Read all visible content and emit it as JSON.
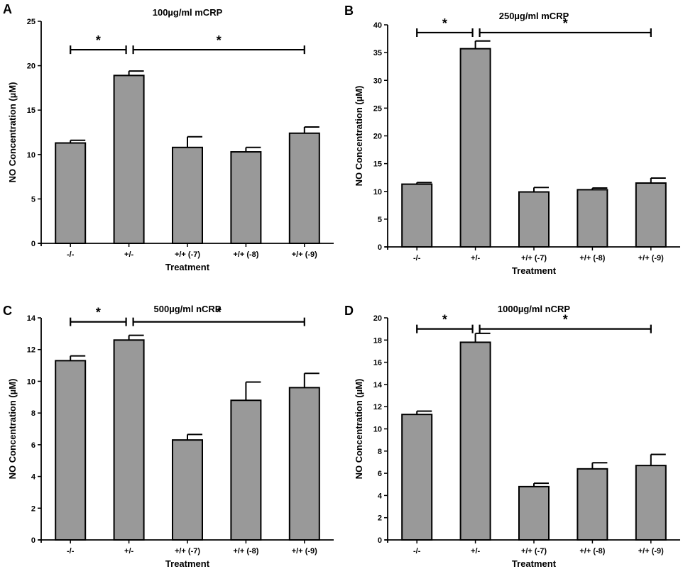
{
  "chart_data": [
    {
      "panel": "A",
      "type": "bar",
      "title": "100µg/ml mCRP",
      "xlabel": "Treatment",
      "ylabel": "NO Concentration (µM)",
      "categories": [
        "-/-",
        "+/-",
        "+/+ (-7)",
        "+/+ (-8)",
        "+/+ (-9)"
      ],
      "values": [
        11.3,
        18.9,
        10.8,
        10.3,
        12.4
      ],
      "errors": [
        0.3,
        0.5,
        1.2,
        0.5,
        0.7
      ],
      "ylim": [
        0,
        25
      ],
      "yticks": [
        "0",
        "5",
        "10",
        "15",
        "20",
        "25"
      ],
      "significance": [
        {
          "from": 0,
          "to": 1,
          "y": 21.8,
          "label": "*"
        },
        {
          "from": 1,
          "to": 4,
          "y": 21.8,
          "label": "*"
        }
      ]
    },
    {
      "panel": "B",
      "type": "bar",
      "title": "250µg/ml mCRP",
      "xlabel": "Treatment",
      "ylabel": "NO Concentration (µM)",
      "categories": [
        "-/-",
        "+/-",
        "+/+ (-7)",
        "+/+ (-8)",
        "+/+ (-9)"
      ],
      "values": [
        11.3,
        35.7,
        9.9,
        10.3,
        11.5
      ],
      "errors": [
        0.3,
        1.4,
        0.8,
        0.3,
        0.9
      ],
      "ylim": [
        0,
        40
      ],
      "yticks": [
        "0",
        "5",
        "10",
        "15",
        "20",
        "25",
        "30",
        "35",
        "40"
      ],
      "significance": [
        {
          "from": 0,
          "to": 1,
          "y": 38.6,
          "label": "*"
        },
        {
          "from": 1,
          "to": 4,
          "y": 38.6,
          "label": "*"
        }
      ]
    },
    {
      "panel": "C",
      "type": "bar",
      "title": "500µg/ml nCRP",
      "xlabel": "Treatment",
      "ylabel": "NO Concentration (µM)",
      "categories": [
        "-/-",
        "+/-",
        "+/+ (-7)",
        "+/+ (-8)",
        "+/+ (-9)"
      ],
      "values": [
        11.3,
        12.6,
        6.3,
        8.8,
        9.6
      ],
      "errors": [
        0.3,
        0.3,
        0.35,
        1.15,
        0.9
      ],
      "ylim": [
        0,
        14
      ],
      "yticks": [
        "0",
        "2",
        "4",
        "6",
        "8",
        "10",
        "12",
        "14"
      ],
      "significance": [
        {
          "from": 0,
          "to": 1,
          "y": 13.75,
          "label": "*"
        },
        {
          "from": 1,
          "to": 4,
          "y": 13.75,
          "label": "*"
        }
      ]
    },
    {
      "panel": "D",
      "type": "bar",
      "title": "1000µg/ml nCRP",
      "xlabel": "Treatment",
      "ylabel": "NO Concentration (µM)",
      "categories": [
        "-/-",
        "+/-",
        "+/+ (-7)",
        "+/+ (-8)",
        "+/+ (-9)"
      ],
      "values": [
        11.3,
        17.8,
        4.8,
        6.4,
        6.7
      ],
      "errors": [
        0.3,
        0.8,
        0.3,
        0.55,
        1.0
      ],
      "ylim": [
        0,
        20
      ],
      "yticks": [
        "0",
        "2",
        "4",
        "6",
        "8",
        "10",
        "12",
        "14",
        "16",
        "18",
        "20"
      ],
      "significance": [
        {
          "from": 0,
          "to": 1,
          "y": 19.0,
          "label": "*"
        },
        {
          "from": 1,
          "to": 4,
          "y": 19.0,
          "label": "*"
        }
      ]
    }
  ]
}
